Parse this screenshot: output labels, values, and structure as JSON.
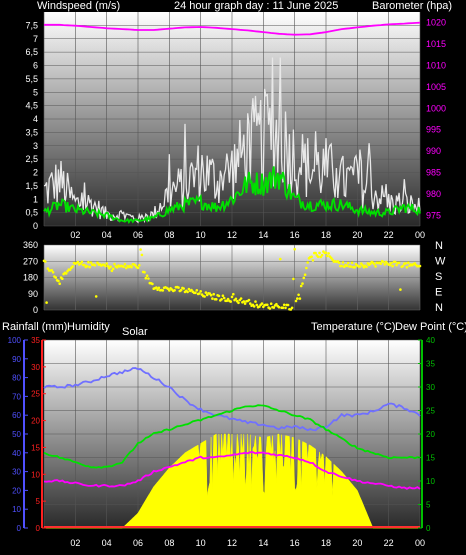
{
  "header": {
    "windspeed_label": "Windspeed (m/s)",
    "title": "24 hour graph day : 11 June 2025",
    "barometer_label": "Barometer (hpa)"
  },
  "labels": {
    "rainfall": "Rainfall (mm)",
    "humidity": "Humidity",
    "solar": "Solar",
    "temperature": "Temperature (°C)",
    "dewpoint": "Dew Point (°C)"
  },
  "colors": {
    "gust": "#e8e8e8",
    "wind": "#00e000",
    "barometer": "#ff00ff",
    "direction": "#ffff00",
    "humidity": "#7070ff",
    "dewpoint": "#ff00ff",
    "temperature": "#00e000",
    "solar": "#ffff00",
    "rain": "#ff3030",
    "humidity_axis": "#5050ff",
    "rain_axis": "#ff2020",
    "temp_axis": "#00c000",
    "barometer_axis": "#ff00ff"
  },
  "x_ticks": [
    "02",
    "04",
    "06",
    "08",
    "10",
    "12",
    "14",
    "16",
    "18",
    "20",
    "22",
    "00"
  ],
  "chart_data": [
    {
      "type": "line",
      "title": "24 hour graph day : 11 June 2025",
      "ylabel": "Windspeed (m/s)",
      "y2label": "Barometer (hpa)",
      "ylim": [
        0,
        8
      ],
      "y2lim": [
        972.5,
        1022.5
      ],
      "yticks": [
        "0",
        "0,5",
        "1",
        "1,5",
        "2",
        "2,5",
        "3",
        "3,5",
        "4",
        "4,5",
        "5",
        "5,5",
        "6",
        "6,5",
        "7",
        "7,5"
      ],
      "y2ticks": [
        "975",
        "980",
        "985",
        "990",
        "995",
        "1000",
        "1005",
        "1010",
        "1015",
        "1020"
      ],
      "x_hours": [
        0,
        1,
        2,
        3,
        4,
        5,
        6,
        7,
        8,
        9,
        10,
        11,
        12,
        13,
        14,
        15,
        16,
        17,
        18,
        19,
        20,
        21,
        22,
        23,
        24
      ],
      "series": [
        {
          "name": "Windspeed (m/s)",
          "values": [
            1.5,
            2.0,
            1.0,
            1.0,
            0.5,
            0.5,
            0.3,
            0.5,
            1.5,
            1.8,
            2.5,
            2.0,
            2.5,
            3.5,
            3.8,
            4.0,
            3.0,
            2.5,
            2.5,
            2.0,
            2.0,
            1.5,
            1.0,
            1.0,
            0.8
          ]
        },
        {
          "name": "wind_avg",
          "values": [
            0.5,
            0.8,
            0.6,
            0.5,
            0.4,
            0.2,
            0.2,
            0.3,
            0.6,
            0.8,
            0.9,
            0.7,
            1.0,
            1.6,
            1.6,
            1.9,
            1.0,
            0.8,
            0.8,
            0.8,
            0.6,
            0.5,
            0.5,
            0.7,
            0.6
          ]
        },
        {
          "name": "Barometer (hpa)",
          "values": [
            1019.5,
            1019.5,
            1019.3,
            1019.0,
            1018.7,
            1018.5,
            1018.3,
            1018.3,
            1018.6,
            1018.9,
            1019.0,
            1018.8,
            1018.5,
            1018.2,
            1017.8,
            1017.4,
            1017.2,
            1017.3,
            1017.8,
            1018.5,
            1018.9,
            1019.3,
            1019.6,
            1019.8,
            1020.0
          ]
        }
      ]
    },
    {
      "type": "scatter",
      "ylabel": "",
      "ylim": [
        0,
        360
      ],
      "yticks": [
        "0",
        "90",
        "180",
        "270",
        "360"
      ],
      "compass": [
        "N",
        "W",
        "S",
        "E",
        "N"
      ],
      "x_hours": [
        0,
        1,
        2,
        3,
        4,
        5,
        6,
        7,
        8,
        9,
        10,
        11,
        12,
        13,
        14,
        15,
        16,
        17,
        18,
        19,
        20,
        21,
        22,
        23,
        24
      ],
      "series": [
        {
          "name": "wind_direction",
          "values": [
            265,
            160,
            255,
            250,
            245,
            240,
            245,
            130,
            115,
            110,
            90,
            70,
            60,
            45,
            20,
            25,
            15,
            300,
            310,
            250,
            250,
            255,
            260,
            250,
            240
          ]
        }
      ]
    },
    {
      "type": "line",
      "y_left_humidity_lim": [
        0,
        100
      ],
      "y_left_rain_lim": [
        0,
        35
      ],
      "y_right_temp_lim": [
        0,
        40
      ],
      "humidity_ticks": [
        "0",
        "10",
        "20",
        "30",
        "40",
        "50",
        "60",
        "70",
        "80",
        "90",
        "100"
      ],
      "rain_ticks": [
        "0",
        "5",
        "10",
        "15",
        "20",
        "25",
        "30",
        "35"
      ],
      "temp_ticks": [
        "0",
        "5",
        "10",
        "15",
        "20",
        "25",
        "30",
        "35",
        "40"
      ],
      "x_hours": [
        0,
        1,
        2,
        3,
        4,
        5,
        6,
        7,
        8,
        9,
        10,
        11,
        12,
        13,
        14,
        15,
        16,
        17,
        18,
        19,
        20,
        21,
        22,
        23,
        24
      ],
      "series": [
        {
          "name": "Humidity",
          "values": [
            75,
            75,
            76,
            78,
            81,
            83,
            85,
            80,
            75,
            68,
            63,
            60,
            58,
            56,
            55,
            53,
            54,
            52,
            54,
            60,
            60,
            62,
            66,
            64,
            60
          ]
        },
        {
          "name": "Temperature (°C)",
          "values": [
            16,
            15,
            14,
            13,
            13,
            14,
            18,
            20,
            21,
            22,
            23,
            24,
            25,
            26,
            26,
            25,
            24,
            23,
            21,
            19,
            17,
            16,
            15,
            15,
            15
          ]
        },
        {
          "name": "Dew Point (°C)",
          "values": [
            10,
            10,
            9.5,
            9,
            9,
            9,
            10,
            12,
            13,
            14,
            15,
            15,
            15.5,
            16,
            16,
            15.5,
            15,
            14,
            12,
            11,
            10,
            9.5,
            9,
            8.5,
            8.5
          ]
        },
        {
          "name": "Solar",
          "values": [
            0,
            0,
            0,
            0,
            0,
            0,
            0.08,
            0.22,
            0.32,
            0.4,
            0.45,
            0.5,
            0.5,
            0.5,
            0.48,
            0.5,
            0.48,
            0.44,
            0.38,
            0.3,
            0.2,
            0,
            0,
            0,
            0
          ]
        },
        {
          "name": "Rainfall (mm)",
          "values": [
            0,
            0,
            0,
            0,
            0,
            0,
            0,
            0,
            0,
            0,
            0,
            0,
            0,
            0,
            0,
            0,
            0,
            0,
            0,
            0,
            0,
            0,
            0,
            0,
            0
          ]
        }
      ]
    }
  ]
}
